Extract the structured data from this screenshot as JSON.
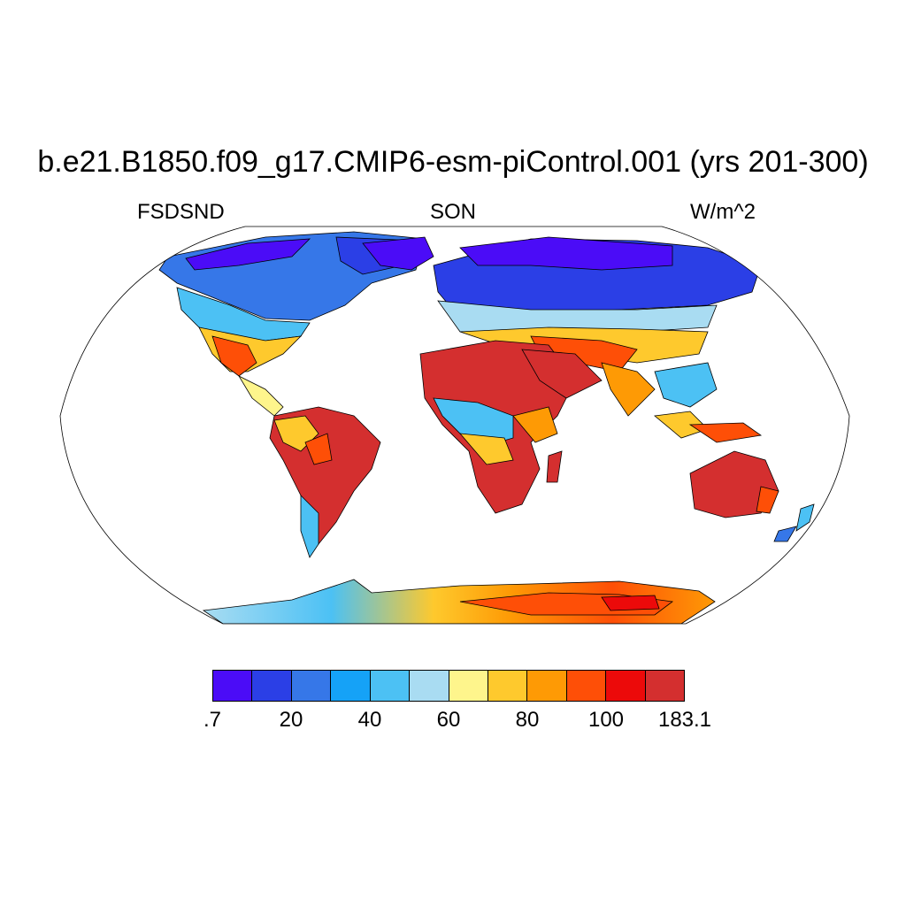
{
  "title": "b.e21.B1850.f09_g17.CMIP6-esm-piControl.001 (yrs 201-300)",
  "variable": "FSDSND",
  "season": "SON",
  "units": "W/m^2",
  "map": {
    "projection": "Robinson",
    "coastlines": true,
    "ocean_fill": "#ffffff",
    "field_description": "land-only shaded field; low values at high latitudes, high values over subtropical deserts"
  },
  "colorbar": {
    "orientation": "horizontal",
    "colors": [
      "#4B0CF7",
      "#2B3FE6",
      "#3677E8",
      "#15A2F7",
      "#4CC1F4",
      "#A9DCF2",
      "#FEF58C",
      "#FEC92D",
      "#FE9A05",
      "#FE4F07",
      "#EC0A0A",
      "#D42F2F"
    ],
    "tick_labels": [
      ".7",
      "20",
      "40",
      "60",
      "80",
      "100",
      "183.1"
    ],
    "tick_positions_boundary_index": [
      0,
      2,
      4,
      6,
      8,
      10,
      12
    ]
  }
}
